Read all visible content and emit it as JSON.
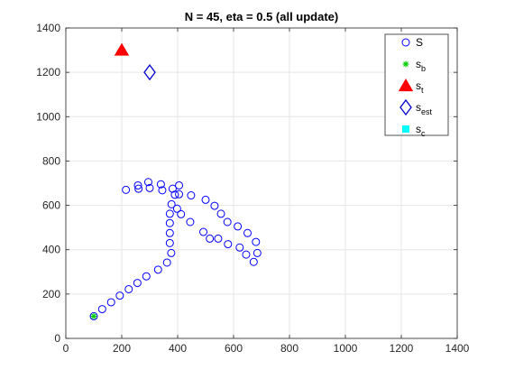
{
  "chart_data": {
    "type": "scatter",
    "title": "N = 45, eta = 0.5 (all update)",
    "xlabel": "",
    "ylabel": "",
    "xlim": [
      0,
      1400
    ],
    "ylim": [
      0,
      1400
    ],
    "xticks": [
      0,
      200,
      400,
      600,
      800,
      1000,
      1200,
      1400
    ],
    "yticks": [
      0,
      200,
      400,
      600,
      800,
      1000,
      1200,
      1400
    ],
    "grid": true,
    "legend_position": "top-right",
    "series": [
      {
        "name": "S",
        "label_main": "S",
        "label_sub": "",
        "marker": "circle",
        "color": "#0000ff",
        "points": [
          [
            100,
            100
          ],
          [
            130,
            132
          ],
          [
            162,
            163
          ],
          [
            193,
            193
          ],
          [
            225,
            222
          ],
          [
            256,
            250
          ],
          [
            288,
            280
          ],
          [
            330,
            310
          ],
          [
            362,
            342
          ],
          [
            377,
            385
          ],
          [
            372,
            430
          ],
          [
            372,
            475
          ],
          [
            372,
            520
          ],
          [
            372,
            562
          ],
          [
            378,
            605
          ],
          [
            390,
            648
          ],
          [
            405,
            690
          ],
          [
            382,
            675
          ],
          [
            340,
            695
          ],
          [
            295,
            705
          ],
          [
            258,
            690
          ],
          [
            215,
            670
          ],
          [
            260,
            675
          ],
          [
            300,
            678
          ],
          [
            345,
            668
          ],
          [
            405,
            650
          ],
          [
            448,
            645
          ],
          [
            500,
            625
          ],
          [
            532,
            598
          ],
          [
            555,
            562
          ],
          [
            578,
            525
          ],
          [
            615,
            505
          ],
          [
            650,
            475
          ],
          [
            680,
            435
          ],
          [
            685,
            385
          ],
          [
            672,
            345
          ],
          [
            645,
            378
          ],
          [
            622,
            410
          ],
          [
            580,
            425
          ],
          [
            545,
            450
          ],
          [
            515,
            450
          ],
          [
            492,
            480
          ],
          [
            445,
            525
          ],
          [
            412,
            560
          ],
          [
            398,
            585
          ]
        ]
      },
      {
        "name": "s_b",
        "label_main": "s",
        "label_sub": "b",
        "marker": "star",
        "color": "#00cc00",
        "points": [
          [
            100,
            100
          ]
        ]
      },
      {
        "name": "s_t",
        "label_main": "s",
        "label_sub": "t",
        "marker": "triangle",
        "color": "#ff0000",
        "points": [
          [
            200,
            1300
          ]
        ]
      },
      {
        "name": "s_est",
        "label_main": "s",
        "label_sub": "est",
        "marker": "diamond",
        "color": "#0000cc",
        "points": [
          [
            300,
            1200
          ]
        ]
      },
      {
        "name": "s_c",
        "label_main": "s",
        "label_sub": "c",
        "marker": "square",
        "color": "#00ffff",
        "points": []
      }
    ]
  }
}
